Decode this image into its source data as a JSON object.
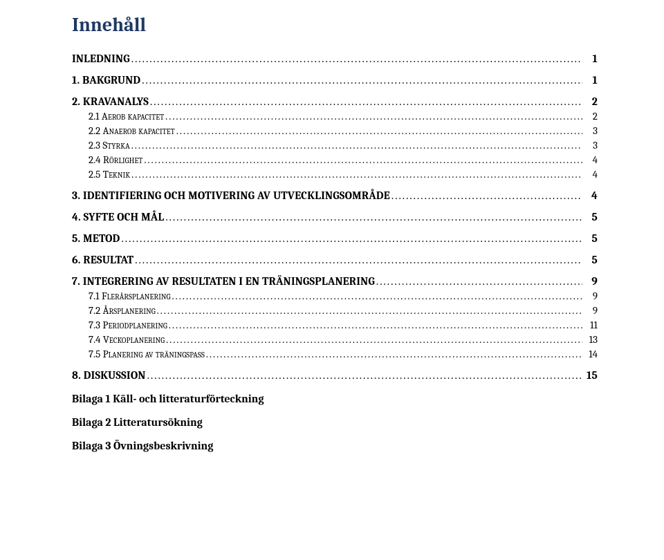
{
  "title": "Innehåll",
  "toc": [
    {
      "level": 1,
      "label": "INLEDNING",
      "page": "1"
    },
    {
      "level": 1,
      "label": "1. BAKGRUND",
      "page": "1"
    },
    {
      "level": 1,
      "label": "2. KRAVANALYS",
      "page": "2"
    },
    {
      "level": 2,
      "label": "2.1 Aerob kapacitet",
      "page": "2"
    },
    {
      "level": 2,
      "label": "2.2 Anaerob kapacitet",
      "page": "3"
    },
    {
      "level": 2,
      "label": "2.3 Styrka",
      "page": "3"
    },
    {
      "level": 2,
      "label": "2.4 Rörlighet",
      "page": "4"
    },
    {
      "level": 2,
      "label": "2.5 Teknik",
      "page": "4"
    },
    {
      "level": 1,
      "label": "3. IDENTIFIERING OCH MOTIVERING AV UTVECKLINGSOMRÅDE",
      "page": "4"
    },
    {
      "level": 1,
      "label": "4. SYFTE OCH MÅL",
      "page": "5"
    },
    {
      "level": 1,
      "label": "5. METOD",
      "page": "5"
    },
    {
      "level": 1,
      "label": "6. RESULTAT",
      "page": "5"
    },
    {
      "level": 1,
      "label": "7. INTEGRERING AV RESULTATEN I EN TRÄNINGSPLANERING",
      "page": "9"
    },
    {
      "level": 2,
      "label": "7.1 Flerårsplanering",
      "page": "9"
    },
    {
      "level": 2,
      "label": "7.2 Årsplanering",
      "page": "9"
    },
    {
      "level": 2,
      "label": "7.3 Periodplanering",
      "page": "11"
    },
    {
      "level": 2,
      "label": "7.4 Veckoplanering",
      "page": "13"
    },
    {
      "level": 2,
      "label": "7.5 Planering av träningspass",
      "page": "14"
    },
    {
      "level": 1,
      "label": "8. DISKUSSION",
      "page": "15"
    }
  ],
  "appendices": [
    "Bilaga 1 Käll- och litteraturförteckning",
    "Bilaga 2 Litteratursökning",
    "Bilaga 3 Övningsbeskrivning"
  ],
  "colors": {
    "title": "#1f3864",
    "text": "#000000",
    "background": "#ffffff"
  },
  "typography": {
    "title_fontsize": 28,
    "level1_fontsize": 16,
    "level2_fontsize": 15,
    "font_family": "Cambria"
  }
}
